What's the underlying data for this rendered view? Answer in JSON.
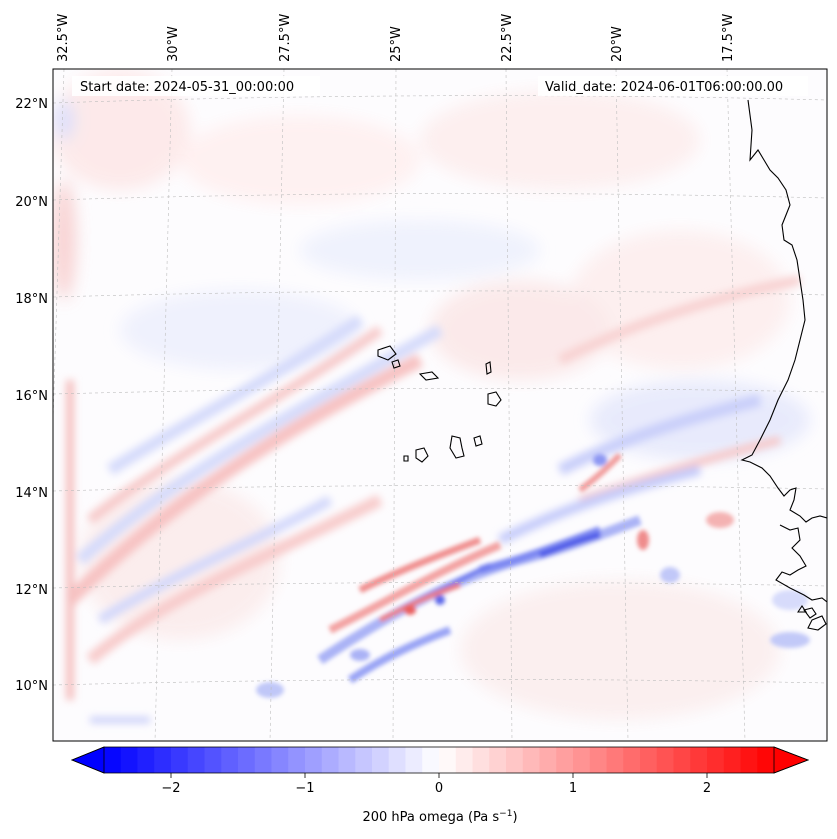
{
  "header": {
    "start_date": "Start date: 2024-05-31_00:00:00",
    "valid_date": "Valid_date: 2024-06-01T06:00:00.00"
  },
  "map": {
    "lon_labels": [
      "32.5°W",
      "30°W",
      "27.5°W",
      "25°W",
      "22.5°W",
      "20°W",
      "17.5°W"
    ],
    "lat_labels": [
      "22°N",
      "20°N",
      "18°N",
      "16°N",
      "14°N",
      "12°N",
      "10°N"
    ],
    "colors": {
      "negative": "#0000ff",
      "zero": "#ffffff",
      "positive": "#ff0000",
      "coast": "#000000",
      "grid": "#bbbbbb"
    }
  },
  "colorbar": {
    "ticks": [
      "−2",
      "−1",
      "0",
      "1",
      "2"
    ],
    "tick_values": [
      -2,
      -1,
      0,
      1,
      2
    ],
    "range": [
      -2.5,
      2.5
    ],
    "label_main": "200 hPa omega (Pa s",
    "label_sup": "−1",
    "label_end": ")"
  }
}
